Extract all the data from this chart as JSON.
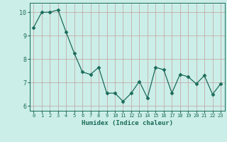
{
  "x": [
    0,
    1,
    2,
    3,
    4,
    5,
    6,
    7,
    8,
    9,
    10,
    11,
    12,
    13,
    14,
    15,
    16,
    17,
    18,
    19,
    20,
    21,
    22,
    23
  ],
  "y": [
    9.35,
    10.0,
    10.0,
    10.1,
    9.15,
    8.25,
    7.45,
    7.35,
    7.65,
    6.55,
    6.55,
    6.2,
    6.55,
    7.05,
    6.35,
    7.65,
    7.55,
    6.55,
    7.35,
    7.25,
    6.95,
    7.3,
    6.5,
    6.95
  ],
  "line_color": "#1a6b5a",
  "marker": "D",
  "marker_size": 2.5,
  "bg_color": "#cceee8",
  "grid_color": "#c0a0a0",
  "tick_color": "#1a6b5a",
  "xlabel": "Humidex (Indice chaleur)",
  "ylim": [
    5.8,
    10.4
  ],
  "xlim": [
    -0.5,
    23.5
  ],
  "yticks": [
    6,
    7,
    8,
    9,
    10
  ],
  "xticks": [
    0,
    1,
    2,
    3,
    4,
    5,
    6,
    7,
    8,
    9,
    10,
    11,
    12,
    13,
    14,
    15,
    16,
    17,
    18,
    19,
    20,
    21,
    22,
    23
  ],
  "xlabel_fontsize": 6.5,
  "ytick_fontsize": 6,
  "xtick_fontsize": 5
}
